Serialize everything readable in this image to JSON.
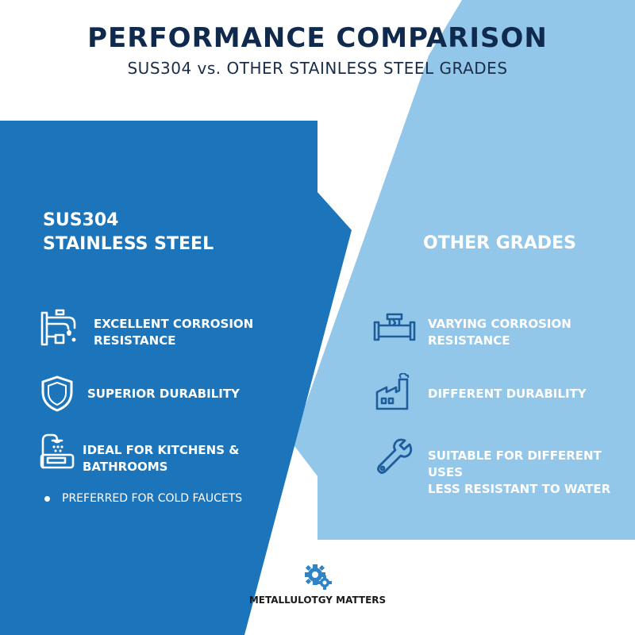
{
  "header": {
    "title": "PERFORMANCE COMPARISON",
    "subtitle": "SUS304 vs. OTHER STAINLESS STEEL GRADES"
  },
  "left_panel": {
    "heading_line1": "SUS304",
    "heading_line2": "STAINLESS STEEL",
    "items": [
      {
        "icon": "faucet-icon",
        "line1": "EXCELLENT CORROSION",
        "line2": "RESISTANCE"
      },
      {
        "icon": "shield-icon",
        "line1": "SUPERIOR DURABILITY"
      },
      {
        "icon": "kitchen-sink-icon",
        "line1": "IDEAL FOR KITCHENS &",
        "line2": "BATHROOMS"
      }
    ],
    "bullet_text": "PREFERRED FOR COLD FAUCETS"
  },
  "right_panel": {
    "heading": "OTHER GRADES",
    "items": [
      {
        "icon": "pipe-fitting-icon",
        "line1": "VARYING CORROSION",
        "line2": "RESISTANCE"
      },
      {
        "icon": "factory-icon",
        "line1": "DIFFERENT DURABILITY"
      },
      {
        "icon": "wrench-icon",
        "line1": "SUITABLE FOR DIFFERENT USES",
        "line2": "LESS RESISTANT TO WATER"
      }
    ]
  },
  "brand": {
    "name": "METALLULOTGY MATTERS",
    "icon": "gear-logo-icon"
  },
  "colors": {
    "dark_blue_panel": "#1c75bb",
    "light_blue_panel": "#93c7ea",
    "title_navy": "#0f2a4d",
    "icon_dark": "#1d5d99",
    "white": "#ffffff"
  }
}
